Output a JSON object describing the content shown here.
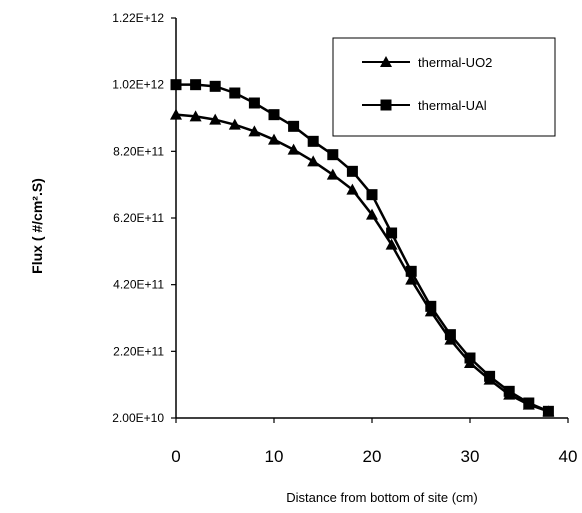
{
  "chart_data": {
    "type": "line",
    "xlabel": "Distance from bottom of site (cm)",
    "ylabel": "Flux ( #/cm².S)",
    "xlim": [
      0,
      40
    ],
    "ylim": [
      20000000000.0,
      1220000000000.0
    ],
    "x_ticks": [
      0,
      10,
      20,
      30,
      40
    ],
    "x_tick_labels": [
      "0",
      "10",
      "20",
      "30",
      "40"
    ],
    "y_ticks": [
      20000000000.0,
      220000000000.0,
      420000000000.0,
      620000000000.0,
      820000000000.0,
      1020000000000.0,
      1220000000000.0
    ],
    "y_tick_labels": [
      "2.00E+10",
      "2.20E+11",
      "4.20E+11",
      "6.20E+11",
      "8.20E+11",
      "1.02E+12",
      "1.22E+12"
    ],
    "grid": false,
    "legend_position": "top-right",
    "series": [
      {
        "name": "thermal-UO2",
        "marker": "triangle",
        "color": "#000000",
        "x": [
          0,
          2,
          4,
          6,
          8,
          10,
          12,
          14,
          16,
          18,
          20,
          22,
          24,
          26,
          28,
          30,
          32,
          34,
          36,
          38
        ],
        "values": [
          930000000000.0,
          925000000000.0,
          915000000000.0,
          900000000000.0,
          880000000000.0,
          855000000000.0,
          825000000000.0,
          790000000000.0,
          750000000000.0,
          705000000000.0,
          630000000000.0,
          540000000000.0,
          435000000000.0,
          340000000000.0,
          255000000000.0,
          185000000000.0,
          135000000000.0,
          90000000000.0,
          60000000000.0,
          40000000000.0
        ]
      },
      {
        "name": "thermal-UAl",
        "marker": "square",
        "color": "#000000",
        "x": [
          0,
          2,
          4,
          6,
          8,
          10,
          12,
          14,
          16,
          18,
          20,
          22,
          24,
          26,
          28,
          30,
          32,
          34,
          36,
          38
        ],
        "values": [
          1020000000000.0,
          1020000000000.0,
          1015000000000.0,
          995000000000.0,
          965000000000.0,
          930000000000.0,
          895000000000.0,
          850000000000.0,
          810000000000.0,
          760000000000.0,
          690000000000.0,
          575000000000.0,
          460000000000.0,
          355000000000.0,
          270000000000.0,
          200000000000.0,
          145000000000.0,
          100000000000.0,
          65000000000.0,
          40000000000.0
        ]
      }
    ]
  }
}
